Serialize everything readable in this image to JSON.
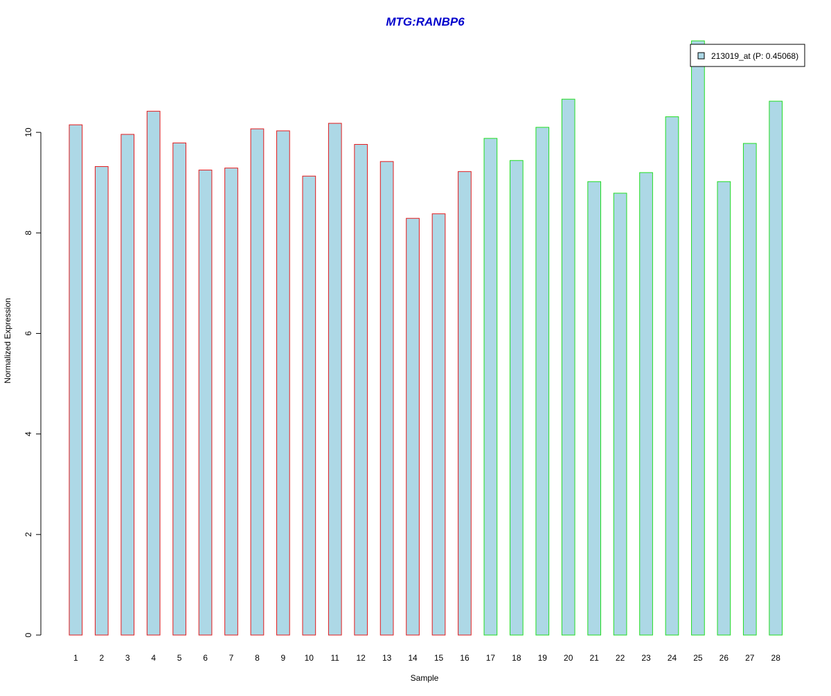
{
  "chart_data": {
    "type": "bar",
    "title": "MTG:RANBP6",
    "xlabel": "Sample",
    "ylabel": "Normalized Expression",
    "categories": [
      "1",
      "2",
      "3",
      "4",
      "5",
      "6",
      "7",
      "8",
      "9",
      "10",
      "11",
      "12",
      "13",
      "14",
      "15",
      "16",
      "17",
      "18",
      "19",
      "20",
      "21",
      "22",
      "23",
      "24",
      "25",
      "26",
      "27",
      "28"
    ],
    "series": [
      {
        "name": "213019_at (P: 0.45068)",
        "values": [
          10.15,
          9.32,
          9.96,
          10.42,
          9.79,
          9.25,
          9.29,
          10.07,
          10.03,
          9.13,
          10.18,
          9.76,
          9.42,
          8.29,
          8.38,
          9.22,
          9.88,
          9.44,
          10.1,
          10.66,
          9.02,
          8.79,
          9.2,
          10.31,
          11.82,
          9.02,
          9.78,
          10.62
        ]
      }
    ],
    "group_border_colors": [
      "#e31a1c",
      "#e31a1c",
      "#e31a1c",
      "#e31a1c",
      "#e31a1c",
      "#e31a1c",
      "#e31a1c",
      "#e31a1c",
      "#e31a1c",
      "#e31a1c",
      "#e31a1c",
      "#e31a1c",
      "#e31a1c",
      "#e31a1c",
      "#e31a1c",
      "#e31a1c",
      "#22dd22",
      "#22dd22",
      "#22dd22",
      "#22dd22",
      "#22dd22",
      "#22dd22",
      "#22dd22",
      "#22dd22",
      "#22dd22",
      "#22dd22",
      "#22dd22",
      "#22dd22"
    ],
    "y_ticks": [
      0,
      2,
      4,
      6,
      8,
      10
    ],
    "ylim": [
      0,
      11.82
    ],
    "grid": false,
    "legend_position": "top-right",
    "colors": {
      "bar_fill": "#add8e6",
      "title": "#0000cc",
      "axis": "#000000"
    }
  }
}
